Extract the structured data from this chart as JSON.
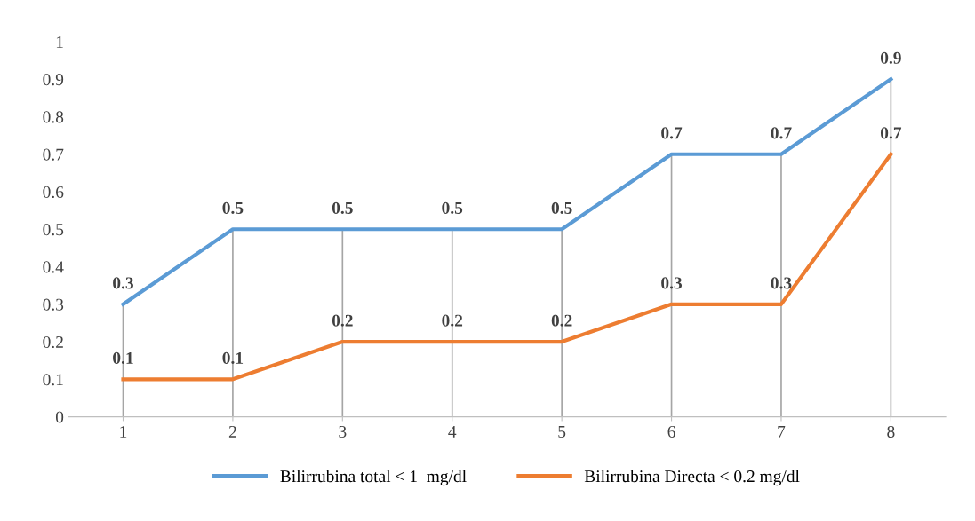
{
  "chart_data": {
    "type": "line",
    "categories": [
      "1",
      "2",
      "3",
      "4",
      "5",
      "6",
      "7",
      "8"
    ],
    "series": [
      {
        "name": "Bilirrubina total < 1  mg/dl",
        "color": "#5b9bd5",
        "values": [
          0.3,
          0.5,
          0.5,
          0.5,
          0.5,
          0.7,
          0.7,
          0.9
        ]
      },
      {
        "name": "Bilirrubina Directa < 0.2 mg/dl",
        "color": "#ed7d31",
        "values": [
          0.1,
          0.1,
          0.2,
          0.2,
          0.2,
          0.3,
          0.3,
          0.7
        ]
      }
    ],
    "ylim": [
      0,
      1
    ],
    "yticks": [
      0,
      0.1,
      0.2,
      0.3,
      0.4,
      0.5,
      0.6,
      0.7,
      0.8,
      0.9,
      1
    ],
    "data_labels": true,
    "grid": "x",
    "legend": "bottom",
    "marker": "none",
    "line_style": "solid"
  }
}
